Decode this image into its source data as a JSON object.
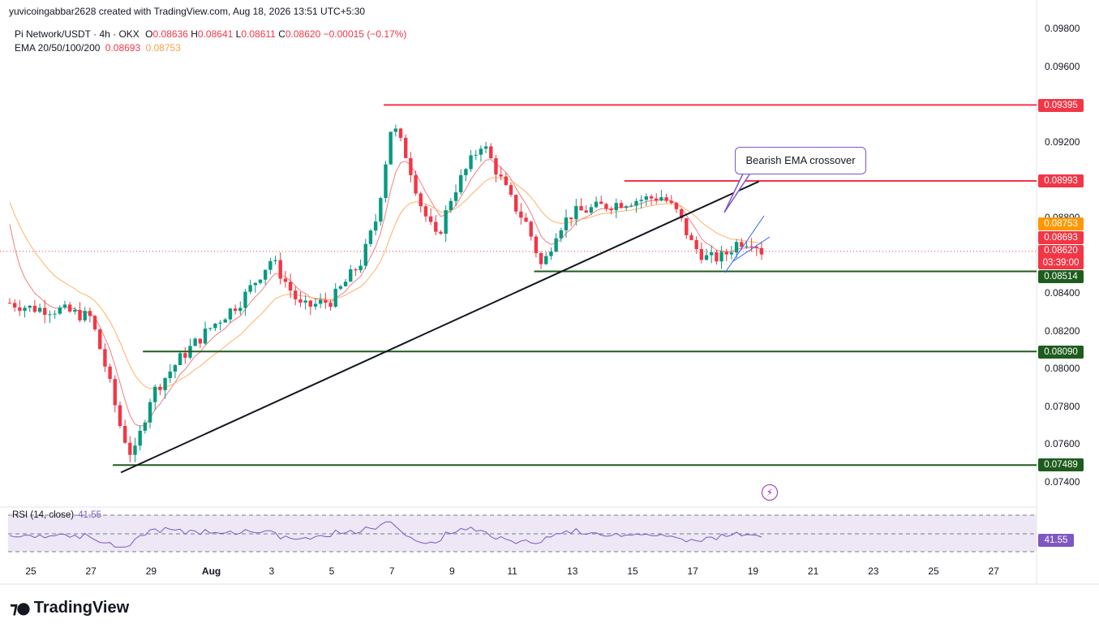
{
  "header": {
    "credit": "yuvicoingabbar2628 created with TradingView.com, Aug 18, 2026 13:51 UTC+5:30",
    "symbol": "Pi Network/USDT · 4h · OKX",
    "ohlc_o_label": "O",
    "ohlc_o": "0.08636",
    "ohlc_h_label": "H",
    "ohlc_h": "0.08641",
    "ohlc_l_label": "L",
    "ohlc_l": "0.08611",
    "ohlc_c_label": "C",
    "ohlc_c": "0.08620",
    "change": "−0.00015 (−0.17%)",
    "ema_label": "EMA 20/50/100/200",
    "ema_v1": "0.08693",
    "ema_v2": "0.08753"
  },
  "annotation": {
    "text": "Bearish EMA crossover"
  },
  "rsi": {
    "label": "RSI (14, close)",
    "value_inline": "41.55",
    "value_tag": "41.55"
  },
  "logo": {
    "text": "TradingView"
  },
  "price_tags": {
    "r1": "0.09395",
    "r2": "0.08993",
    "ema_slow": "0.08753",
    "ema_fast": "0.08693",
    "last": "0.08620",
    "countdown": "03:39:00",
    "s1": "0.08514",
    "s2": "0.08090",
    "s3": "0.07489"
  },
  "colors": {
    "up": "#089981",
    "down": "#f23645",
    "resistance": "#f23645",
    "support": "#1e5c1e",
    "ema_fast": "#f77c80",
    "ema_slow": "#ffb266",
    "rsi_line": "#7e57c2",
    "rsi_band": "#ede7f6",
    "annotation_border": "#7e57c2"
  },
  "chart_data": {
    "type": "candlestick",
    "timeframe": "4h",
    "y_tick_labels": [
      "0.09800",
      "0.09600",
      "0.09200",
      "0.08800",
      "0.08400",
      "0.08200",
      "0.08000",
      "0.07800",
      "0.07600",
      "0.07400"
    ],
    "x_tick_labels": [
      "25",
      "27",
      "29",
      "Aug",
      "3",
      "5",
      "7",
      "9",
      "11",
      "13",
      "15",
      "17",
      "19",
      "21",
      "23",
      "25",
      "27"
    ],
    "ylim": [
      0.0734,
      0.0994
    ],
    "horizontal_levels": [
      {
        "value": 0.09395,
        "kind": "resistance",
        "from_date": "Aug 6"
      },
      {
        "value": 0.08993,
        "kind": "resistance",
        "from_date": "Aug 14"
      },
      {
        "value": 0.08514,
        "kind": "support",
        "from_date": "Aug 11"
      },
      {
        "value": 0.0809,
        "kind": "support",
        "from_date": "Jul 29"
      },
      {
        "value": 0.07489,
        "kind": "support",
        "from_date": "Jul 28"
      }
    ],
    "trendline": {
      "from": [
        "Jul 28",
        0.0745
      ],
      "to": [
        "Aug 17.5",
        0.0899
      ]
    },
    "last_close": 0.0862,
    "ema_fast_last": 0.08693,
    "ema_slow_last": 0.08753,
    "rsi_last": 41.55,
    "close_path": [
      [
        "Jul 24",
        0.0836
      ],
      [
        "Jul 25",
        0.0832
      ],
      [
        "Jul 26",
        0.0831
      ],
      [
        "Jul 27",
        0.0827
      ],
      [
        "Jul 27.5",
        0.08
      ],
      [
        "Jul 28",
        0.0768
      ],
      [
        "Jul 28.4",
        0.0752
      ],
      [
        "Jul 29",
        0.0786
      ],
      [
        "Jul 30",
        0.0806
      ],
      [
        "Jul 31",
        0.0822
      ],
      [
        "Aug 1",
        0.0836
      ],
      [
        "Aug 2",
        0.0858
      ],
      [
        "Aug 3",
        0.0832
      ],
      [
        "Aug 4",
        0.0836
      ],
      [
        "Aug 5",
        0.0857
      ],
      [
        "Aug 5.5",
        0.088
      ],
      [
        "Aug 6",
        0.093
      ],
      [
        "Aug 6.5",
        0.0912
      ],
      [
        "Aug 7",
        0.0885
      ],
      [
        "Aug 7.5",
        0.0868
      ],
      [
        "Aug 8",
        0.0892
      ],
      [
        "Aug 9",
        0.092
      ],
      [
        "Aug 9.5",
        0.0904
      ],
      [
        "Aug 10",
        0.0888
      ],
      [
        "Aug 10.5",
        0.0876
      ],
      [
        "Aug 11",
        0.0853
      ],
      [
        "Aug 11.5",
        0.0874
      ],
      [
        "Aug 12",
        0.0882
      ],
      [
        "Aug 13",
        0.0886
      ],
      [
        "Aug 14",
        0.0889
      ],
      [
        "Aug 15",
        0.0891
      ],
      [
        "Aug 15.5",
        0.0882
      ],
      [
        "Aug 16",
        0.0865
      ],
      [
        "Aug 16.5",
        0.0858
      ],
      [
        "Aug 17",
        0.0859
      ],
      [
        "Aug 17.5",
        0.0867
      ],
      [
        "Aug 18",
        0.0868
      ],
      [
        "Aug 18.3",
        0.0862
      ]
    ]
  }
}
